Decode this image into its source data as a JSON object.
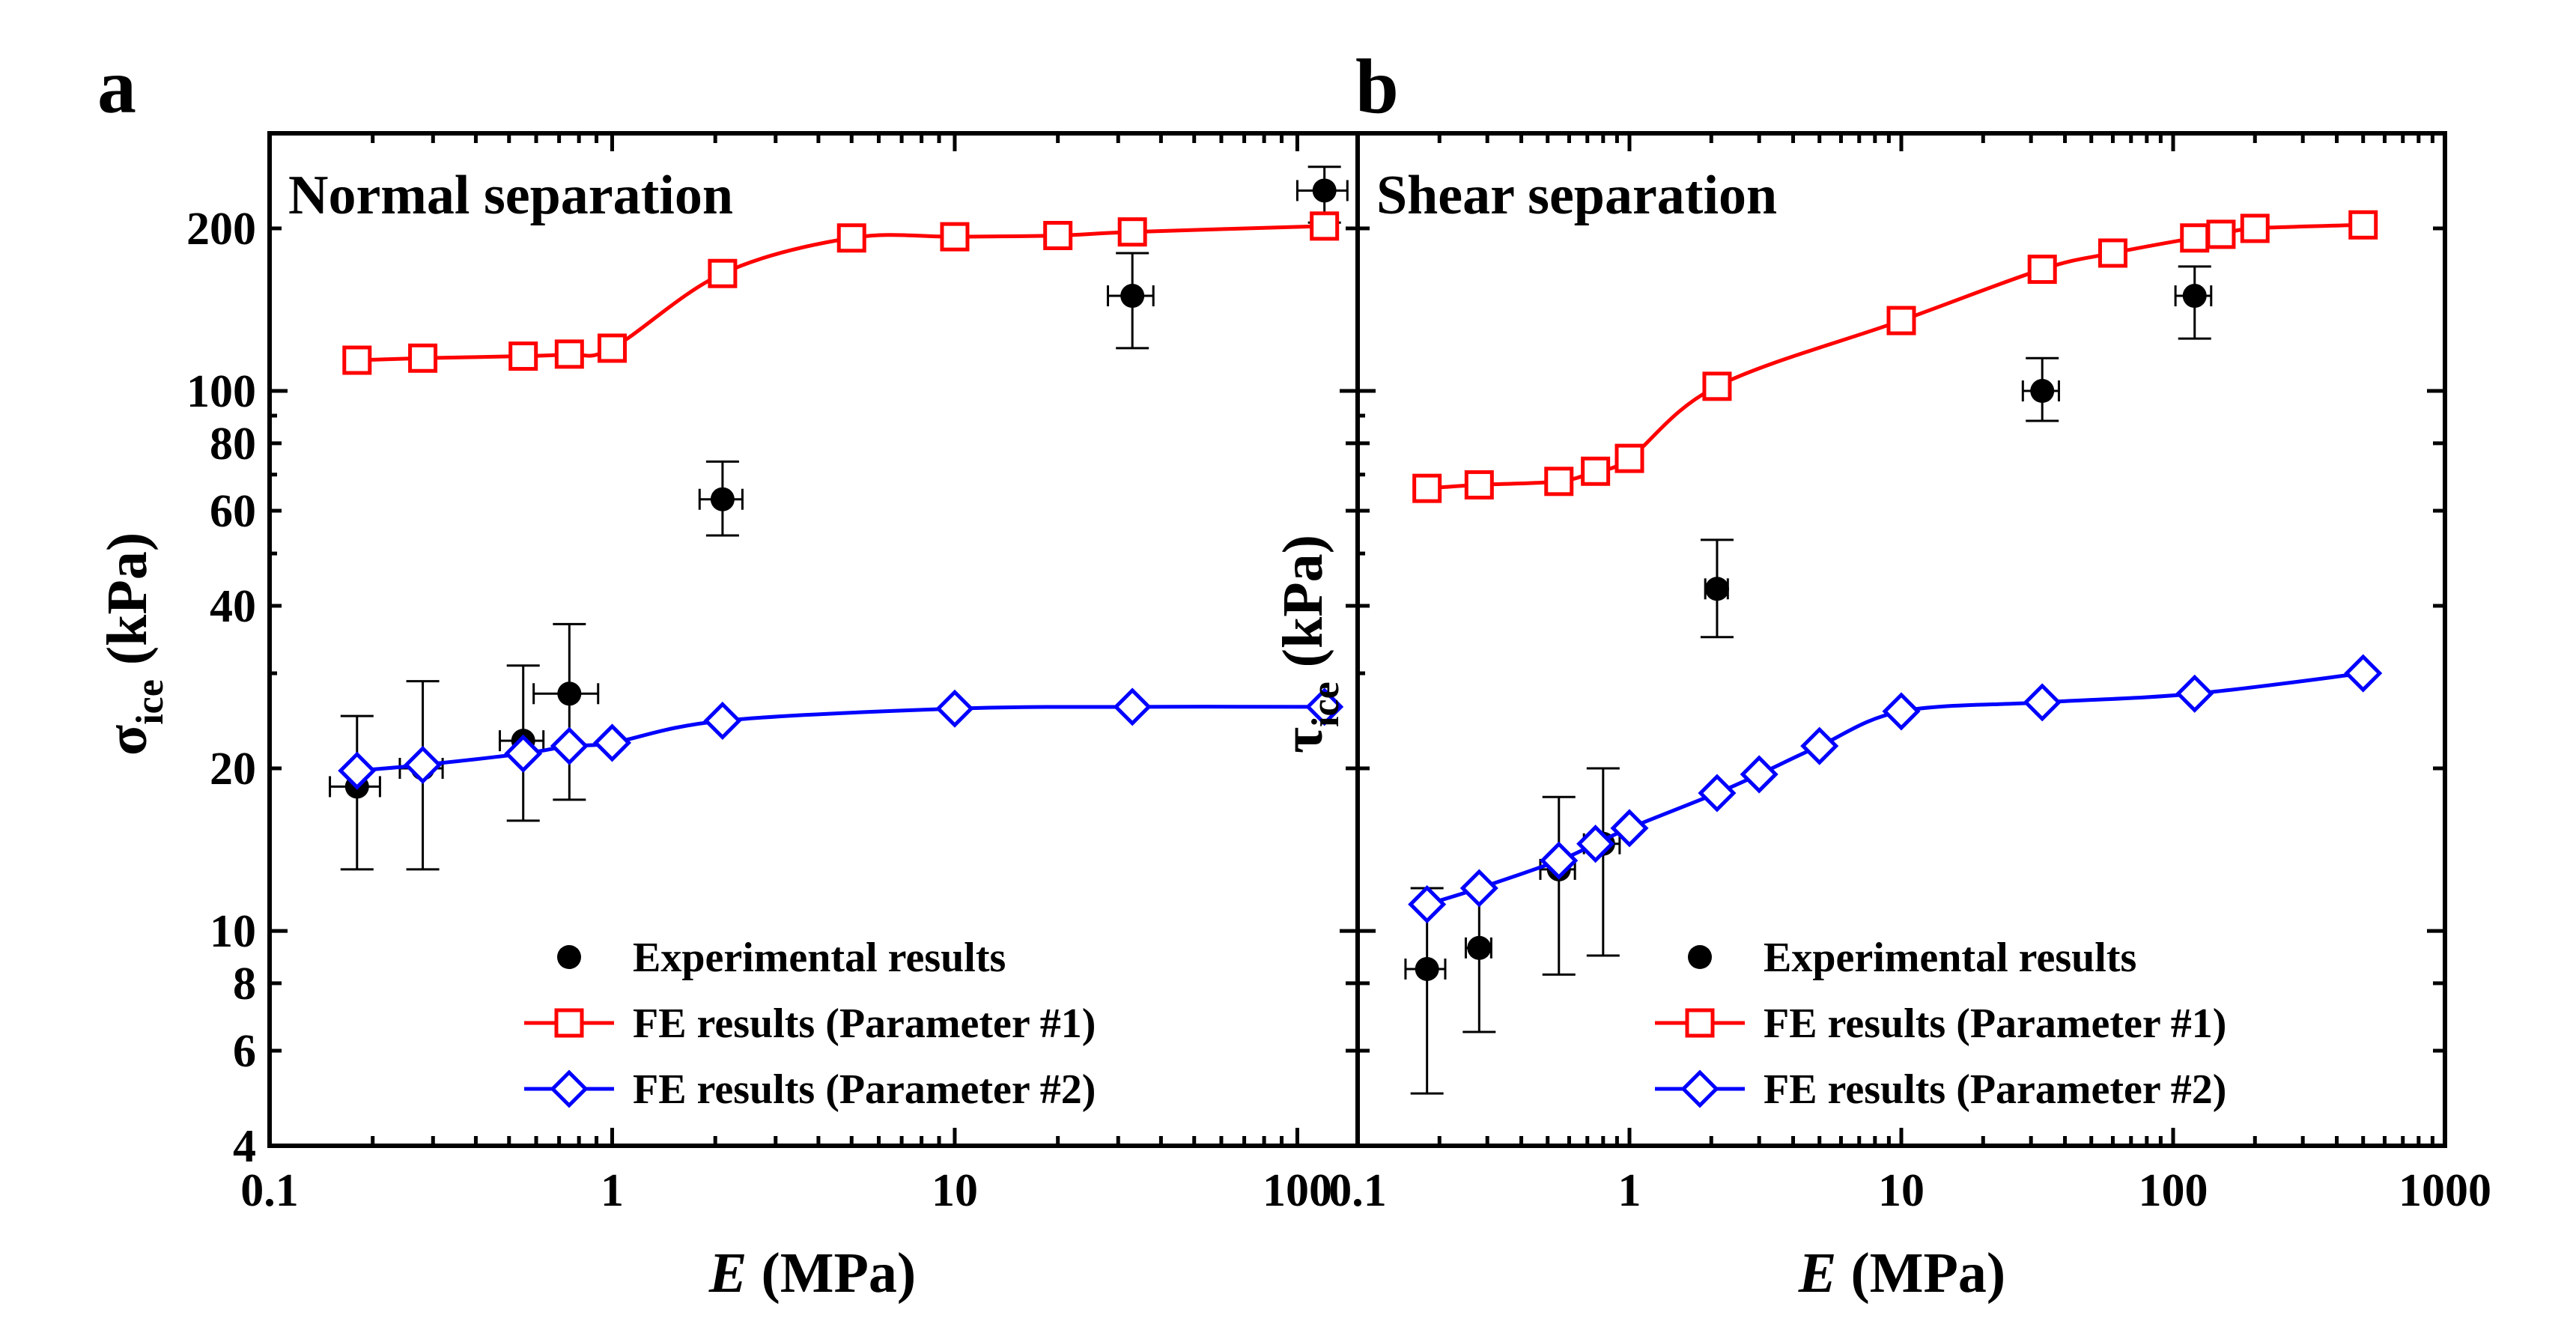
{
  "chart_data": [
    {
      "panel_label": "a",
      "type": "scatter",
      "title": "Normal separation",
      "xlabel_italic": "E",
      "xlabel_rest": " (MPa)",
      "ylabel_symbol": "σ",
      "ylabel_sub": "ice",
      "ylabel_unit": " (kPa)",
      "xscale": "log",
      "yscale": "log",
      "xlim": [
        0.1,
        150
      ],
      "ylim": [
        4,
        300
      ],
      "xticks": [
        0.1,
        1,
        10,
        100
      ],
      "xtick_labels": [
        "0.1",
        "1",
        "10",
        "100"
      ],
      "yticks": [
        4,
        6,
        8,
        10,
        20,
        40,
        60,
        80,
        100,
        200
      ],
      "ytick_labels": [
        "4",
        "6",
        "8",
        "10",
        "20",
        "40",
        "60",
        "80",
        "100",
        "200"
      ],
      "grid": false,
      "legend_position": "bottom-right",
      "series": [
        {
          "name": "Experimental results",
          "style": "points",
          "color": "#000000",
          "x": [
            0.18,
            0.28,
            0.55,
            0.75,
            2.1,
            33,
            120
          ],
          "y": [
            18.5,
            20,
            22.5,
            27.5,
            63,
            150,
            235
          ],
          "x_err": [
            [
              0.03,
              0.03
            ],
            [
              0.04,
              0.04
            ],
            [
              0.08,
              0.08
            ],
            [
              0.16,
              0.16
            ],
            [
              0.3,
              0.3
            ],
            [
              5,
              5
            ],
            [
              20,
              20
            ]
          ],
          "y_err": [
            [
              5.5,
              6.5
            ],
            [
              7,
              9
            ],
            [
              6.5,
              8.5
            ],
            [
              10,
              9.5
            ],
            [
              9,
              11
            ],
            [
              30,
              30
            ],
            [
              30,
              25
            ]
          ]
        },
        {
          "name": "FE results (Parameter #1)",
          "style": "line-square",
          "color": "#ff0000",
          "x": [
            0.18,
            0.28,
            0.55,
            0.75,
            1.0,
            2.1,
            5,
            10,
            20,
            33,
            120
          ],
          "y": [
            114,
            115,
            116,
            117,
            120,
            165,
            192,
            193,
            194,
            197,
            202
          ]
        },
        {
          "name": "FE results (Parameter #2)",
          "style": "line-diamond",
          "color": "#0000ff",
          "x": [
            0.18,
            0.28,
            0.55,
            0.75,
            1.0,
            2.1,
            10,
            33,
            120
          ],
          "y": [
            19.8,
            20.3,
            21.3,
            22.0,
            22.3,
            24.5,
            25.8,
            26.0,
            26.0
          ]
        }
      ]
    },
    {
      "panel_label": "b",
      "type": "scatter",
      "title": "Shear separation",
      "xlabel_italic": "E",
      "xlabel_rest": " (MPa)",
      "ylabel_symbol": "τ",
      "ylabel_sub": "ice",
      "ylabel_unit": " (kPa)",
      "xscale": "log",
      "yscale": "log",
      "xlim": [
        0.1,
        1000
      ],
      "ylim": [
        4,
        300
      ],
      "xticks": [
        0.1,
        1,
        10,
        100,
        1000
      ],
      "xtick_labels": [
        "0.1",
        "1",
        "10",
        "100",
        "1000"
      ],
      "yticks": [
        4,
        6,
        8,
        10,
        20,
        40,
        60,
        80,
        100,
        200
      ],
      "ytick_labels": [],
      "grid": false,
      "legend_position": "bottom-right",
      "series": [
        {
          "name": "Experimental results",
          "style": "points",
          "color": "#000000",
          "x": [
            0.18,
            0.28,
            0.55,
            0.8,
            2.1,
            33,
            120
          ],
          "y": [
            8.5,
            9.3,
            13,
            14.5,
            43,
            100,
            150
          ],
          "x_err": [
            [
              0.03,
              0.03
            ],
            [
              0.03,
              0.03
            ],
            [
              0.08,
              0.08
            ],
            [
              0.12,
              0.12
            ],
            [
              0.2,
              0.2
            ],
            [
              5,
              5
            ],
            [
              18,
              18
            ]
          ],
          "y_err": [
            [
              3.5,
              3.5
            ],
            [
              2.8,
              2.8
            ],
            [
              4.7,
              4.7
            ],
            [
              5.5,
              5.5
            ],
            [
              8,
              10
            ],
            [
              12,
              15
            ],
            [
              25,
              20
            ]
          ]
        },
        {
          "name": "FE results (Parameter #1)",
          "style": "line-square",
          "color": "#ff0000",
          "x": [
            0.18,
            0.28,
            0.55,
            0.75,
            1.0,
            2.1,
            10,
            33,
            60,
            120,
            150,
            200,
            500
          ],
          "y": [
            66,
            67,
            68,
            71,
            75,
            102,
            135,
            168,
            180,
            192,
            195,
            200,
            203
          ]
        },
        {
          "name": "FE results (Parameter #2)",
          "style": "line-diamond",
          "color": "#0000ff",
          "x": [
            0.18,
            0.28,
            0.55,
            0.75,
            1.0,
            2.1,
            3,
            5,
            10,
            33,
            120,
            500
          ],
          "y": [
            11.2,
            12,
            13.5,
            14.5,
            15.5,
            18,
            19.5,
            22,
            25.5,
            26.5,
            27.5,
            30
          ]
        }
      ]
    }
  ]
}
